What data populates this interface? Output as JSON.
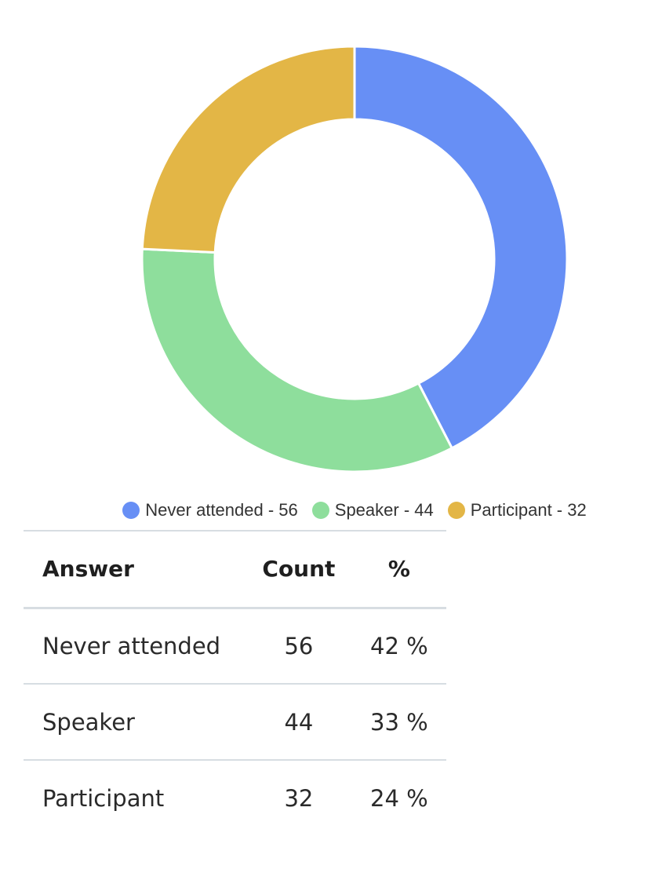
{
  "chart_data": {
    "type": "pie",
    "donut": true,
    "slices": [
      {
        "label": "Never attended",
        "value": 56,
        "color": "#678ff5"
      },
      {
        "label": "Speaker",
        "value": 44,
        "color": "#8ede9c"
      },
      {
        "label": "Participant",
        "value": 32,
        "color": "#e3b646"
      }
    ],
    "legend": {
      "placement": "bottom",
      "items": [
        "Never attended - 56",
        "Speaker - 44",
        "Participant - 32"
      ]
    }
  },
  "table": {
    "headers": {
      "answer": "Answer",
      "count": "Count",
      "percent": "%"
    },
    "rows": [
      {
        "answer": "Never attended",
        "count": "56",
        "percent": "42 %"
      },
      {
        "answer": "Speaker",
        "count": "44",
        "percent": "33 %"
      },
      {
        "answer": "Participant",
        "count": "32",
        "percent": "24 %"
      }
    ]
  },
  "colors": {
    "answer_text": "#6f9e7c",
    "divider": "#d7dde2"
  }
}
